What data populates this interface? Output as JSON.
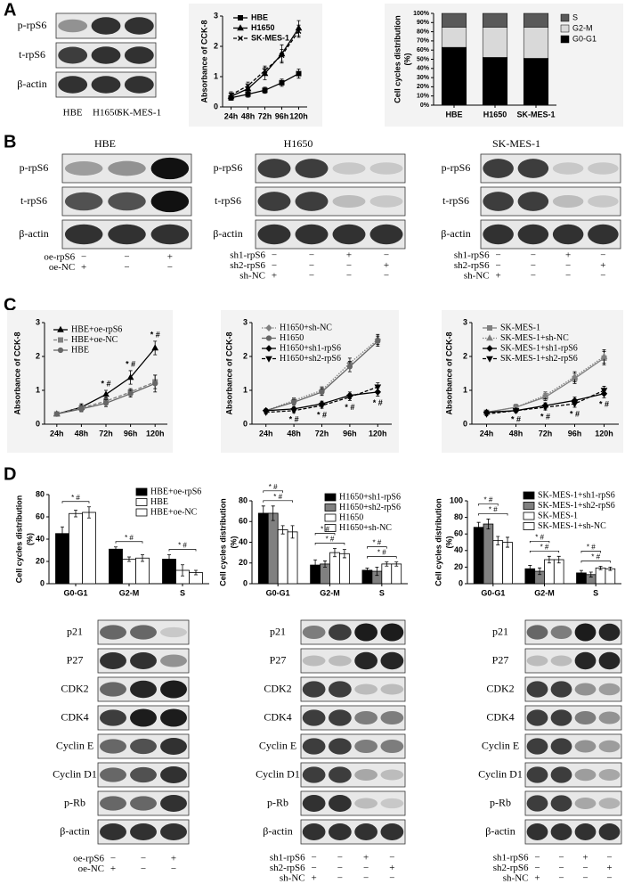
{
  "panel_labels": [
    "A",
    "B",
    "C",
    "D"
  ],
  "blots": [
    {
      "rows": [
        "p-rpS6",
        "t-rpS6",
        "β-actin"
      ],
      "lanes": [
        "HBE",
        "H1650",
        "SK-MES-1"
      ]
    },
    {
      "title": "HBE",
      "rows": [
        "p-rpS6",
        "t-rpS6",
        "β-actin"
      ],
      "treatments": [
        {
          "name": "oe-rpS6",
          "signs": [
            "−",
            "−",
            "+"
          ]
        },
        {
          "name": "oe-NC",
          "signs": [
            "+",
            "−",
            "−"
          ]
        }
      ]
    },
    {
      "title": "H1650",
      "rows": [
        "p-rpS6",
        "t-rpS6",
        "β-actin"
      ],
      "treatments": [
        {
          "name": "sh1-rpS6",
          "signs": [
            "−",
            "−",
            "+",
            "−"
          ]
        },
        {
          "name": "sh2-rpS6",
          "signs": [
            "−",
            "−",
            "−",
            "+"
          ]
        },
        {
          "name": "sh-NC",
          "signs": [
            "+",
            "−",
            "−",
            "−"
          ]
        }
      ]
    },
    {
      "title": "SK-MES-1",
      "rows": [
        "p-rpS6",
        "t-rpS6",
        "β-actin"
      ],
      "treatments": [
        {
          "name": "sh1-rpS6",
          "signs": [
            "−",
            "−",
            "+",
            "−"
          ]
        },
        {
          "name": "sh2-rpS6",
          "signs": [
            "−",
            "−",
            "−",
            "+"
          ]
        },
        {
          "name": "sh-NC",
          "signs": [
            "+",
            "−",
            "−",
            "−"
          ]
        }
      ]
    },
    {
      "rows": [
        "p21",
        "P27",
        "CDK2",
        "CDK4",
        "Cyclin E",
        "Cyclin D1",
        "p-Rb",
        "β-actin"
      ],
      "treatments": [
        {
          "name": "oe-rpS6",
          "signs": [
            "−",
            "−",
            "+"
          ]
        },
        {
          "name": "oe-NC",
          "signs": [
            "+",
            "−",
            "−"
          ]
        }
      ]
    },
    {
      "rows": [
        "p21",
        "P27",
        "CDK2",
        "CDK4",
        "Cyclin E",
        "Cyclin D1",
        "p-Rb",
        "β-actin"
      ],
      "treatments": [
        {
          "name": "sh1-rpS6",
          "signs": [
            "−",
            "−",
            "+",
            "−"
          ]
        },
        {
          "name": "sh2-rpS6",
          "signs": [
            "−",
            "−",
            "−",
            "+"
          ]
        },
        {
          "name": "sh-NC",
          "signs": [
            "+",
            "−",
            "−",
            "−"
          ]
        }
      ]
    },
    {
      "rows": [
        "p21",
        "P27",
        "CDK2",
        "CDK4",
        "Cyclin E",
        "Cyclin D1",
        "p-Rb",
        "β-actin"
      ],
      "treatments": [
        {
          "name": "sh1-rpS6",
          "signs": [
            "−",
            "−",
            "+",
            "−"
          ]
        },
        {
          "name": "sh2-rpS6",
          "signs": [
            "−",
            "−",
            "−",
            "+"
          ]
        },
        {
          "name": "sh-NC",
          "signs": [
            "+",
            "−",
            "−",
            "−"
          ]
        }
      ]
    }
  ],
  "chart_data": [
    {
      "type": "line",
      "ylabel": "Absorbance of CCK-8",
      "categories": [
        "24h",
        "48h",
        "72h",
        "96h",
        "120h"
      ],
      "ylim": [
        0,
        3
      ],
      "yticks": [
        0,
        1,
        2,
        3
      ],
      "series": [
        {
          "name": "HBE",
          "color": "#000000",
          "marker": "square",
          "line_style": "solid",
          "values": [
            0.3,
            0.42,
            0.55,
            0.8,
            1.1
          ],
          "errors": [
            0.08,
            0.1,
            0.1,
            0.12,
            0.15
          ]
        },
        {
          "name": "H1650",
          "color": "#000000",
          "marker": "triangle",
          "line_style": "solid",
          "values": [
            0.35,
            0.6,
            1.1,
            1.75,
            2.6
          ],
          "errors": [
            0.1,
            0.12,
            0.2,
            0.3,
            0.25
          ]
        },
        {
          "name": "SK-MES-1",
          "color": "#000000",
          "marker": "x",
          "line_style": "dashed",
          "values": [
            0.4,
            0.7,
            1.2,
            1.7,
            2.5
          ],
          "errors": [
            0.1,
            0.12,
            0.15,
            0.2,
            0.2
          ]
        }
      ]
    },
    {
      "type": "stacked_bar",
      "ylabel": [
        "Cell cycles distribution",
        "(%)"
      ],
      "categories": [
        "HBE",
        "H1650",
        "SK-MES-1"
      ],
      "ylim": [
        0,
        100
      ],
      "yticks": [
        {
          "value": 0,
          "label": "0%"
        },
        {
          "value": 10,
          "label": "10%"
        },
        {
          "value": 20,
          "label": "20%"
        },
        {
          "value": 30,
          "label": "30%"
        },
        {
          "value": 40,
          "label": "40%"
        },
        {
          "value": 50,
          "label": "50%"
        },
        {
          "value": 60,
          "label": "60%"
        },
        {
          "value": 70,
          "label": "70%"
        },
        {
          "value": 80,
          "label": "80%"
        },
        {
          "value": 90,
          "label": "90%"
        },
        {
          "value": 100,
          "label": "100%"
        }
      ],
      "series": [
        {
          "name": "G0-G1",
          "color": "#000000",
          "values": [
            63,
            52,
            51
          ]
        },
        {
          "name": "G2-M",
          "color": "#d9d9d9",
          "values": [
            22,
            33,
            34
          ]
        },
        {
          "name": "S",
          "color": "#595959",
          "values": [
            15,
            15,
            15
          ]
        }
      ]
    },
    {
      "type": "line",
      "ylabel": "Absorbance of CCK-8",
      "categories": [
        "24h",
        "48h",
        "72h",
        "96h",
        "120h"
      ],
      "ylim": [
        0,
        3
      ],
      "yticks": [
        0,
        1,
        2,
        3
      ],
      "annotation_position": "above",
      "annotations": [
        null,
        null,
        "* #",
        "* #",
        "* #"
      ],
      "series": [
        {
          "name": "HBE+oe-rpS6",
          "color": "#000000",
          "marker": "triangle",
          "line_style": "solid",
          "values": [
            0.3,
            0.5,
            0.88,
            1.38,
            2.25
          ],
          "errors": [
            0.05,
            0.1,
            0.12,
            0.2,
            0.2
          ]
        },
        {
          "name": "HBE+oe-NC",
          "color": "#808080",
          "marker": "square",
          "line_style": "dashed",
          "values": [
            0.3,
            0.48,
            0.68,
            0.95,
            1.25
          ],
          "errors": [
            0.05,
            0.08,
            0.1,
            0.1,
            0.2
          ]
        },
        {
          "name": "HBE",
          "color": "#666666",
          "marker": "circle",
          "line_style": "solid",
          "values": [
            0.3,
            0.45,
            0.62,
            0.9,
            1.2
          ],
          "errors": [
            0.05,
            0.08,
            0.1,
            0.1,
            0.25
          ]
        }
      ]
    },
    {
      "type": "line",
      "ylabel": "Absorbance of CCK-8",
      "categories": [
        "24h",
        "48h",
        "72h",
        "96h",
        "120h"
      ],
      "ylim": [
        0,
        3
      ],
      "yticks": [
        0,
        1,
        2,
        3
      ],
      "annotation_position": "below",
      "annotations": [
        null,
        "* #",
        "* #",
        "* #",
        "* #"
      ],
      "series": [
        {
          "name": "H1650+sh-NC",
          "color": "#808080",
          "marker": "diamond",
          "line_style": "dotted",
          "values": [
            0.4,
            0.7,
            1.0,
            1.8,
            2.5
          ],
          "errors": [
            0.05,
            0.08,
            0.1,
            0.15,
            0.15
          ]
        },
        {
          "name": "H1650",
          "color": "#666666",
          "marker": "circle",
          "line_style": "solid",
          "values": [
            0.4,
            0.65,
            0.95,
            1.7,
            2.45
          ],
          "errors": [
            0.05,
            0.08,
            0.1,
            0.15,
            0.15
          ]
        },
        {
          "name": "H1650+sh1-rpS6",
          "color": "#000000",
          "marker": "diamond",
          "line_style": "solid",
          "values": [
            0.4,
            0.45,
            0.6,
            0.85,
            0.95
          ],
          "errors": [
            0.05,
            0.06,
            0.08,
            0.1,
            0.12
          ]
        },
        {
          "name": "H1650+sh2-rpS6",
          "color": "#000000",
          "marker": "triangle-down",
          "line_style": "dashed",
          "values": [
            0.35,
            0.4,
            0.55,
            0.8,
            1.1
          ],
          "errors": [
            0.05,
            0.06,
            0.08,
            0.1,
            0.12
          ]
        }
      ]
    },
    {
      "type": "line",
      "ylabel": "Absorbance of CCK-8",
      "categories": [
        "24h",
        "48h",
        "72h",
        "96h",
        "120h"
      ],
      "ylim": [
        0,
        3
      ],
      "yticks": [
        0,
        1,
        2,
        3
      ],
      "annotation_position": "below",
      "annotations": [
        null,
        "* #",
        "* #",
        "* #",
        "* #"
      ],
      "series": [
        {
          "name": "SK-MES-1",
          "color": "#808080",
          "marker": "square",
          "line_style": "solid",
          "values": [
            0.35,
            0.5,
            0.8,
            1.35,
            1.95
          ],
          "errors": [
            0.05,
            0.08,
            0.1,
            0.15,
            0.2
          ]
        },
        {
          "name": "SK-MES-1+sh-NC",
          "color": "#808080",
          "marker": "triangle",
          "line_style": "dotted",
          "values": [
            0.35,
            0.5,
            0.85,
            1.4,
            2.0
          ],
          "errors": [
            0.05,
            0.08,
            0.1,
            0.15,
            0.2
          ]
        },
        {
          "name": "SK-MES-1+sh1-rpS6",
          "color": "#000000",
          "marker": "diamond",
          "line_style": "solid",
          "values": [
            0.35,
            0.4,
            0.55,
            0.7,
            0.9
          ],
          "errors": [
            0.05,
            0.06,
            0.08,
            0.1,
            0.12
          ]
        },
        {
          "name": "SK-MES-1+sh2-rpS6",
          "color": "#000000",
          "marker": "triangle-down",
          "line_style": "dashed",
          "values": [
            0.3,
            0.4,
            0.5,
            0.6,
            1.0
          ],
          "errors": [
            0.05,
            0.06,
            0.08,
            0.1,
            0.12
          ]
        }
      ]
    },
    {
      "type": "bar",
      "ylabel": [
        "Cell cycles distribution",
        "(%)"
      ],
      "categories": [
        "G0-G1",
        "G2-M",
        "S"
      ],
      "ylim": [
        0,
        80
      ],
      "yticks": [
        0,
        20,
        40,
        60,
        80
      ],
      "annotations": [
        [
          "* #"
        ],
        [
          "* #"
        ],
        [
          "* #"
        ]
      ],
      "series": [
        {
          "name": "HBE+oe-rpS6",
          "color": "#000000",
          "values": [
            45,
            31,
            22
          ],
          "errors": [
            6,
            2,
            4
          ]
        },
        {
          "name": "HBE",
          "color": "#ffffff",
          "values": [
            63,
            22,
            12
          ],
          "errors": [
            3,
            2,
            5
          ]
        },
        {
          "name": "HBE+oe-NC",
          "color": "#ffffff",
          "values": [
            64,
            23,
            10
          ],
          "errors": [
            5,
            3,
            2
          ]
        }
      ]
    },
    {
      "type": "bar",
      "ylabel": [
        "Cell cycles distribution",
        "(%)"
      ],
      "categories": [
        "G0-G1",
        "G2-M",
        "S"
      ],
      "ylim": [
        0,
        80
      ],
      "yticks": [
        0,
        20,
        40,
        60,
        80
      ],
      "annotations": [
        [
          "* #",
          "* #"
        ],
        [
          "* #",
          "* #"
        ],
        [
          "* #",
          "* #"
        ]
      ],
      "series": [
        {
          "name": "H1650+sh1-rpS6",
          "color": "#000000",
          "values": [
            68,
            18,
            13
          ],
          "errors": [
            7,
            5,
            2
          ]
        },
        {
          "name": "H1650+sh2-rpS6",
          "color": "#808080",
          "values": [
            68,
            19,
            12
          ],
          "errors": [
            7,
            3,
            4
          ]
        },
        {
          "name": "H1650",
          "color": "#ffffff",
          "values": [
            52,
            30,
            19
          ],
          "errors": [
            4,
            4,
            2
          ]
        },
        {
          "name": "H1650+sh-NC",
          "color": "#ffffff",
          "values": [
            50,
            29,
            19
          ],
          "errors": [
            6,
            4,
            2
          ]
        }
      ]
    },
    {
      "type": "bar",
      "ylabel": [
        "Cell cycles distribution",
        "(%)"
      ],
      "categories": [
        "G0-G1",
        "G2-M",
        "S"
      ],
      "ylim": [
        0,
        100
      ],
      "yticks": [
        0,
        20,
        40,
        60,
        80,
        100
      ],
      "annotations": [
        [
          "* #",
          "* #"
        ],
        [
          "* #",
          "* #"
        ],
        [
          "* #",
          "* #"
        ]
      ],
      "series": [
        {
          "name": "SK-MES-1+sh1-rpS6",
          "color": "#000000",
          "values": [
            68,
            18,
            13
          ],
          "errors": [
            6,
            4,
            3
          ]
        },
        {
          "name": "SK-MES-1+sh2-rpS6",
          "color": "#808080",
          "values": [
            72,
            15,
            11
          ],
          "errors": [
            6,
            4,
            3
          ]
        },
        {
          "name": "SK-MES-1",
          "color": "#ffffff",
          "values": [
            52,
            29,
            19
          ],
          "errors": [
            5,
            4,
            2
          ]
        },
        {
          "name": "SK-MES-1+sh-NC",
          "color": "#ffffff",
          "values": [
            50,
            29,
            18
          ],
          "errors": [
            6,
            4,
            2
          ]
        }
      ]
    }
  ]
}
